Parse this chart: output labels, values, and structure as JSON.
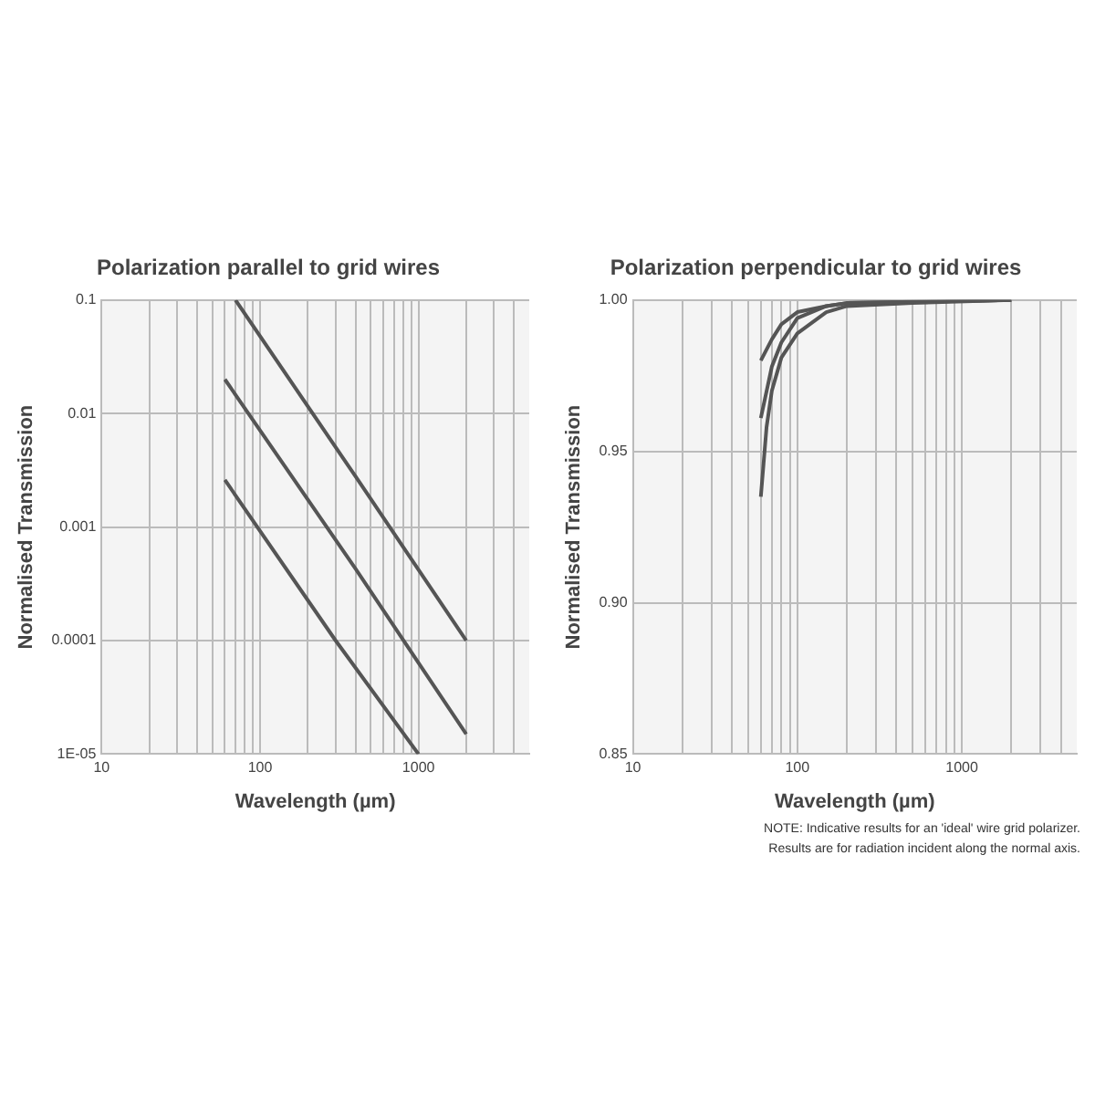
{
  "chart_data": [
    {
      "type": "line",
      "title": "Polarization parallel to grid wires",
      "xlabel": "Wavelength (µm)",
      "ylabel": "Normalised Transmission",
      "log": "xy",
      "grid": true,
      "legend": false,
      "marker": "none",
      "line_style": "solid",
      "xlim": [
        10,
        5000
      ],
      "xticks": [
        10,
        {
          "value": 20,
          "label": null
        },
        {
          "value": 30,
          "label": null
        },
        {
          "value": 40,
          "label": null
        },
        {
          "value": 50,
          "label": null
        },
        {
          "value": 60,
          "label": null
        },
        {
          "value": 70,
          "label": null
        },
        {
          "value": 80,
          "label": null
        },
        {
          "value": 90,
          "label": null
        },
        100,
        {
          "value": 200,
          "label": null
        },
        {
          "value": 300,
          "label": null
        },
        {
          "value": 400,
          "label": null
        },
        {
          "value": 500,
          "label": null
        },
        {
          "value": 600,
          "label": null
        },
        {
          "value": 700,
          "label": null
        },
        {
          "value": 800,
          "label": null
        },
        {
          "value": 900,
          "label": null
        },
        1000,
        {
          "value": 2000,
          "label": null
        },
        {
          "value": 3000,
          "label": null
        },
        {
          "value": 4000,
          "label": null
        }
      ],
      "ylim": [
        1e-05,
        0.1
      ],
      "yticks": [
        {
          "value": 1e-05,
          "label": "1E-05"
        },
        0.0001,
        0.001,
        0.01,
        0.1
      ],
      "series": [
        {
          "color": "#555555",
          "x": [
            70,
            400,
            2000
          ],
          "values": [
            0.1,
            0.0028,
            0.0001
          ]
        },
        {
          "color": "#555555",
          "x": [
            60,
            400,
            2000
          ],
          "values": [
            0.02,
            0.00043,
            1.5e-05
          ]
        },
        {
          "color": "#555555",
          "x": [
            60,
            300,
            1000
          ],
          "values": [
            0.0026,
            0.0001,
            1e-05
          ]
        }
      ]
    },
    {
      "type": "line",
      "title": "Polarization perpendicular to grid wires",
      "xlabel": "Wavelength (µm)",
      "ylabel": "Normalised Transmission",
      "log": "x",
      "grid": true,
      "legend": false,
      "marker": "none",
      "line_style": "solid",
      "xlim": [
        10,
        5000
      ],
      "xticks": [
        10,
        {
          "value": 20,
          "label": null
        },
        {
          "value": 30,
          "label": null
        },
        {
          "value": 40,
          "label": null
        },
        {
          "value": 50,
          "label": null
        },
        {
          "value": 60,
          "label": null
        },
        {
          "value": 70,
          "label": null
        },
        {
          "value": 80,
          "label": null
        },
        {
          "value": 90,
          "label": null
        },
        100,
        {
          "value": 200,
          "label": null
        },
        {
          "value": 300,
          "label": null
        },
        {
          "value": 400,
          "label": null
        },
        {
          "value": 500,
          "label": null
        },
        {
          "value": 600,
          "label": null
        },
        {
          "value": 700,
          "label": null
        },
        {
          "value": 800,
          "label": null
        },
        {
          "value": 900,
          "label": null
        },
        1000,
        {
          "value": 2000,
          "label": null
        },
        {
          "value": 3000,
          "label": null
        },
        {
          "value": 4000,
          "label": null
        }
      ],
      "ylim": [
        0.85,
        1.0
      ],
      "yticks": [
        {
          "value": 0.85,
          "label": "0.85"
        },
        {
          "value": 0.9,
          "label": "0.90"
        },
        {
          "value": 0.95,
          "label": "0.95"
        },
        {
          "value": 1.0,
          "label": "1.00"
        }
      ],
      "series": [
        {
          "color": "#555555",
          "x": [
            60,
            70,
            80,
            100,
            150,
            200,
            2000
          ],
          "values": [
            0.98,
            0.987,
            0.992,
            0.996,
            0.998,
            0.999,
            1.0
          ]
        },
        {
          "color": "#555555",
          "x": [
            60,
            70,
            80,
            100,
            150,
            200,
            2000
          ],
          "values": [
            0.961,
            0.978,
            0.986,
            0.994,
            0.998,
            0.999,
            1.0
          ]
        },
        {
          "color": "#555555",
          "x": [
            60,
            65,
            70,
            80,
            100,
            150,
            200,
            500,
            2000
          ],
          "values": [
            0.935,
            0.958,
            0.97,
            0.981,
            0.989,
            0.996,
            0.998,
            0.999,
            1.0
          ]
        }
      ],
      "annotations": [
        "NOTE: Indicative results for an 'ideal' wire grid polarizer.",
        "Results are for radiation incident along the normal axis."
      ]
    }
  ]
}
